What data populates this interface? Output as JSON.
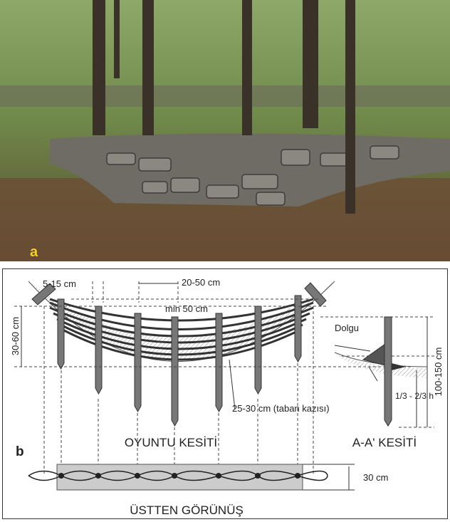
{
  "photo": {
    "label": "a"
  },
  "diagram": {
    "label": "b",
    "dim_stake_diameter": "5-15 cm",
    "dim_stake_spacing": "20-50 cm",
    "dim_min_depth": "min 50 cm",
    "dim_side_height": "30-60 cm",
    "fill_label": "Dolgu",
    "dim_stake_length": "100-150 cm",
    "dim_bed_excavation": "25-30 cm (taban kazısı)",
    "dim_embed_ratio": "1/3 - 2/3 h",
    "section_title": "OYUNTU KESİTİ",
    "aa_title": "A-A' KESİTİ",
    "dim_width": "30 cm",
    "top_view_title": "ÜSTTEN GÖRÜNÜŞ"
  }
}
